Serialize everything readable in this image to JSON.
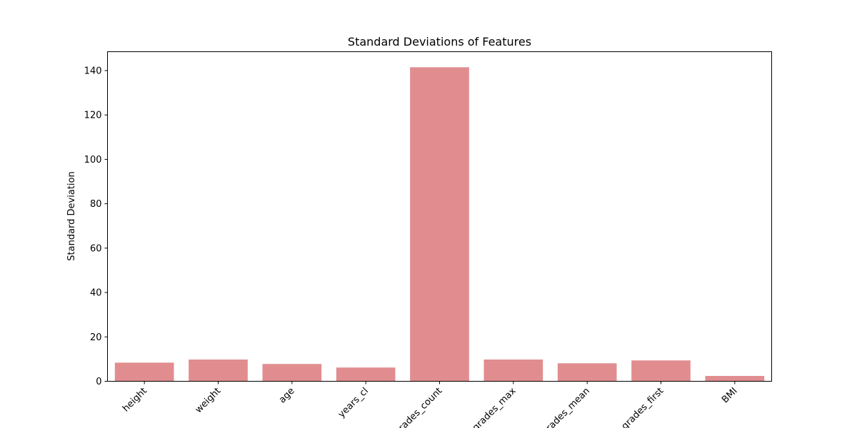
{
  "chart_data": {
    "type": "bar",
    "title": "Standard Deviations of Features",
    "xlabel": "",
    "ylabel": "Standard Deviation",
    "categories": [
      "height",
      "weight",
      "age",
      "years_cl",
      "grades_count",
      "grades_max",
      "grades_mean",
      "grades_first",
      "BMI"
    ],
    "values": [
      8.4,
      9.8,
      7.8,
      6.2,
      141.5,
      9.8,
      8.1,
      9.4,
      2.4
    ],
    "ylim": [
      0,
      148.5
    ],
    "yticks": [
      0,
      20,
      40,
      60,
      80,
      100,
      120,
      140
    ],
    "bar_color": "#e18d8f",
    "grid": false,
    "legend": "none"
  }
}
